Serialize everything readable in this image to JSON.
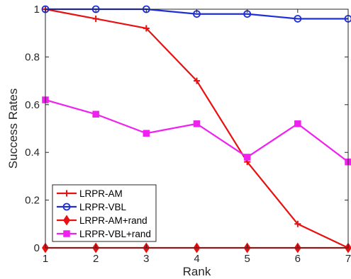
{
  "chart_data": {
    "type": "line",
    "title": "",
    "xlabel": "Rank",
    "ylabel": "Success Rates",
    "x": [
      1,
      2,
      3,
      4,
      5,
      6,
      7
    ],
    "xlim": [
      1,
      7
    ],
    "ylim": [
      0,
      1
    ],
    "xticks": [
      1,
      2,
      3,
      4,
      5,
      6,
      7
    ],
    "yticks": [
      0,
      0.2,
      0.4,
      0.6,
      0.8,
      1
    ],
    "ytick_labels": [
      "0",
      "0.2",
      "0.4",
      "0.6",
      "0.8",
      "1"
    ],
    "grid": false,
    "legend_position": "bottom-left",
    "series": [
      {
        "name": "LRPR-AM",
        "color": "#e81010",
        "marker": "plus",
        "values": [
          1.0,
          0.96,
          0.92,
          0.7,
          0.36,
          0.1,
          0.0
        ]
      },
      {
        "name": "LRPR-VBL",
        "color": "#1f2fd6",
        "marker": "circle",
        "values": [
          1.0,
          1.0,
          1.0,
          0.98,
          0.98,
          0.96,
          0.96
        ]
      },
      {
        "name": "LRPR-AM+rand",
        "color": "#e81010",
        "marker": "diamond",
        "values": [
          0.0,
          0.0,
          0.0,
          0.0,
          0.0,
          0.0,
          0.0
        ]
      },
      {
        "name": "LRPR-VBL+rand",
        "color": "#f020f0",
        "marker": "square",
        "values": [
          0.62,
          0.56,
          0.48,
          0.52,
          0.38,
          0.52,
          0.36
        ]
      }
    ]
  }
}
